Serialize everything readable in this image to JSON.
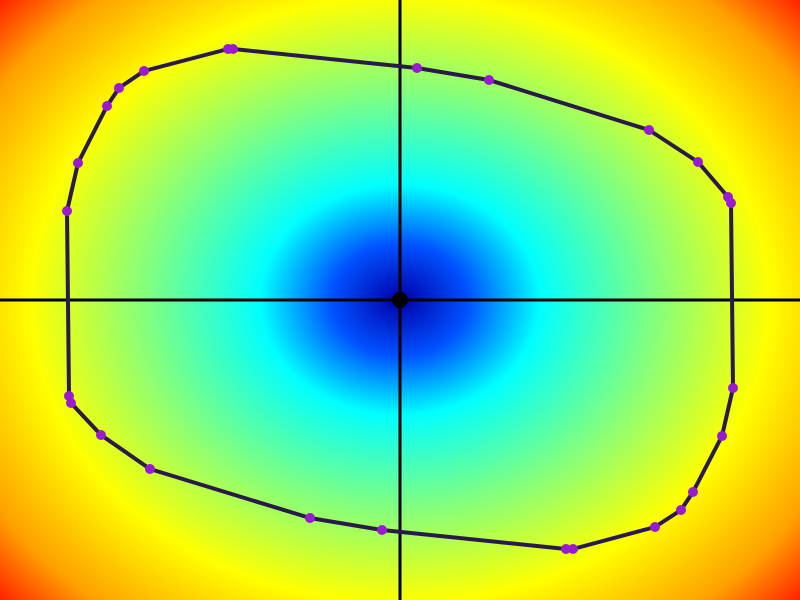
{
  "field": {
    "colormap_stops": [
      {
        "t": 0.0,
        "color": "#0000a8"
      },
      {
        "t": 0.12,
        "color": "#0050ff"
      },
      {
        "t": 0.25,
        "color": "#00ffff"
      },
      {
        "t": 0.45,
        "color": "#80ff80"
      },
      {
        "t": 0.66,
        "color": "#ffff00"
      },
      {
        "t": 0.85,
        "color": "#ffa000"
      },
      {
        "t": 1.0,
        "color": "#ff0000"
      }
    ]
  },
  "axes": {
    "color": "#000000"
  },
  "origin": {
    "color": "#000000"
  },
  "curve": {
    "stroke": "#2a1a4a",
    "point_color": "#9a1ad0",
    "points": [
      [
        228,
        49
      ],
      [
        233,
        49
      ],
      [
        417,
        68
      ],
      [
        489,
        80
      ],
      [
        649,
        130
      ],
      [
        698,
        162
      ],
      [
        728,
        197
      ],
      [
        731,
        203
      ],
      [
        733,
        388
      ],
      [
        722,
        436
      ],
      [
        693,
        492
      ],
      [
        681,
        510
      ],
      [
        655,
        527
      ],
      [
        573,
        549
      ],
      [
        566,
        549
      ],
      [
        382,
        530
      ],
      [
        310,
        518
      ],
      [
        150,
        469
      ],
      [
        101,
        435
      ],
      [
        71,
        403
      ],
      [
        69,
        396
      ],
      [
        67,
        211
      ],
      [
        78,
        163
      ],
      [
        107,
        106
      ],
      [
        119,
        88
      ],
      [
        144,
        71
      ]
    ]
  }
}
